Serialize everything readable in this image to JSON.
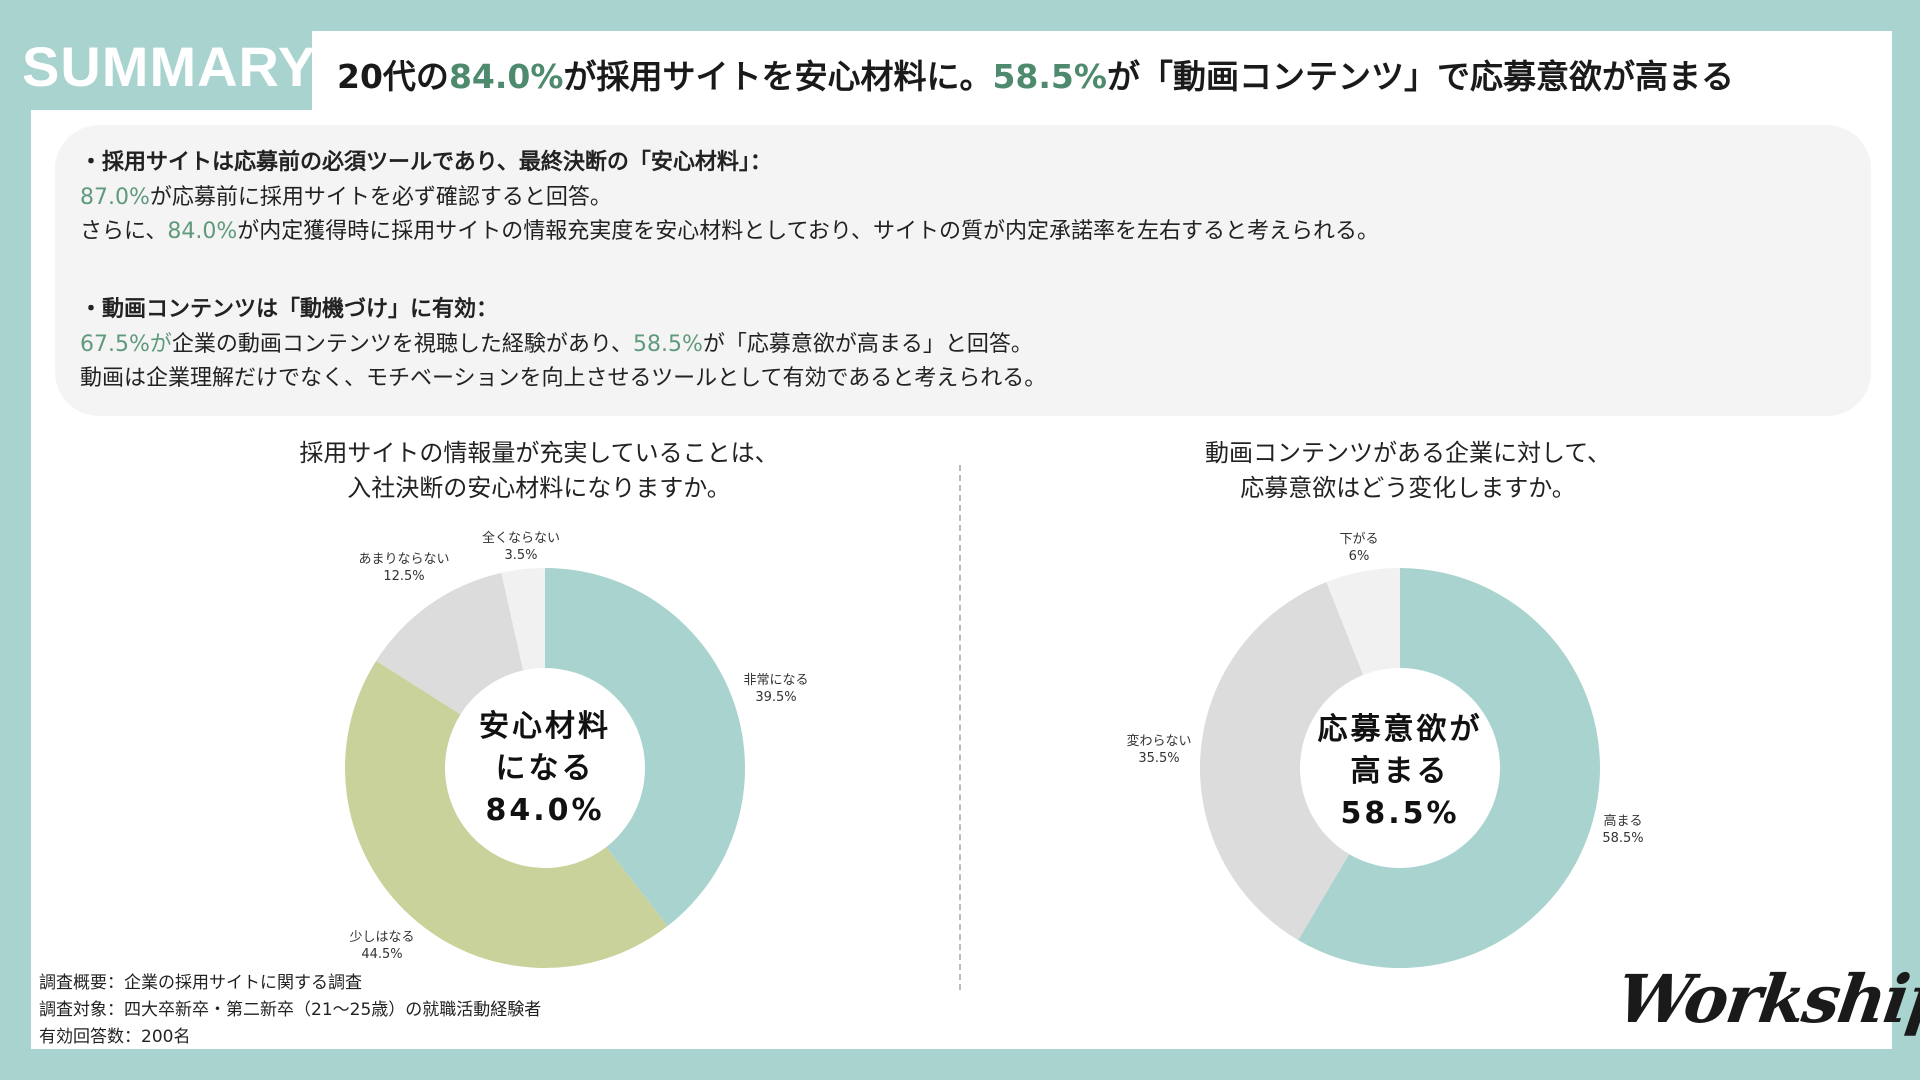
{
  "header": {
    "badge": "SUMMARY",
    "headline": {
      "p1": "20代の",
      "h1": "84.0%",
      "p2": "が採用サイトを安心材料に。",
      "h2": "58.5%",
      "p3": "が「動画コンテンツ」で応募意欲が高まる"
    }
  },
  "summary": {
    "point1": {
      "heading": "・採用サイトは応募前の必須ツールであり、最終決断の「安心材料」：",
      "l1": {
        "g": "87.0%",
        "t": "が応募前に採用サイトを必ず確認すると回答。"
      },
      "l2": {
        "a": "さらに、",
        "g": "84.0%",
        "t": "が内定獲得時に採用サイトの情報充実度を安心材料としており、サイトの質が内定承諾率を左右すると考えられる。"
      }
    },
    "point2": {
      "heading": "・動画コンテンツは「動機づけ」に有効：",
      "l1": {
        "g1": "67.5%が",
        "t1": "企業の動画コンテンツを視聴した経験があり、",
        "g2": "58.5%",
        "t2": "が「応募意欲が高まる」と回答。"
      },
      "l2": "動画は企業理解だけでなく、モチベーションを向上させるツールとして有効であると考えられる。"
    }
  },
  "chart_data": [
    {
      "type": "pie",
      "title": [
        "採用サイトの情報量が充実していることは、",
        "入社決断の安心材料になりますか。"
      ],
      "labels": [
        "非常になる",
        "少しはなる",
        "あまりならない",
        "全くならない"
      ],
      "values": [
        39.5,
        44.5,
        12.5,
        3.5
      ],
      "value_labels": [
        "39.5%",
        "44.5%",
        "12.5%",
        "3.5%"
      ],
      "colors": [
        "#a9d3cf",
        "#c9d29a",
        "#dcdcdc",
        "#f1f1f1"
      ],
      "center": [
        "安心材料",
        "になる",
        "84.0%"
      ]
    },
    {
      "type": "pie",
      "title": [
        "動画コンテンツがある企業に対して、",
        "応募意欲はどう変化しますか。"
      ],
      "labels": [
        "高まる",
        "変わらない",
        "下がる"
      ],
      "values": [
        58.5,
        35.5,
        6
      ],
      "value_labels": [
        "58.5%",
        "35.5%",
        "6%"
      ],
      "colors": [
        "#a9d3cf",
        "#dcdcdc",
        "#f1f1f1"
      ],
      "center": [
        "応募意欲が",
        "高まる",
        "58.5%"
      ]
    }
  ],
  "footer": {
    "notes": [
      "調査概要：企業の採用サイトに関する調査",
      "調査対象：四大卒新卒・第二新卒（21〜25歳）の就職活動経験者",
      "有効回答数：200名"
    ],
    "logo": "Workship"
  }
}
